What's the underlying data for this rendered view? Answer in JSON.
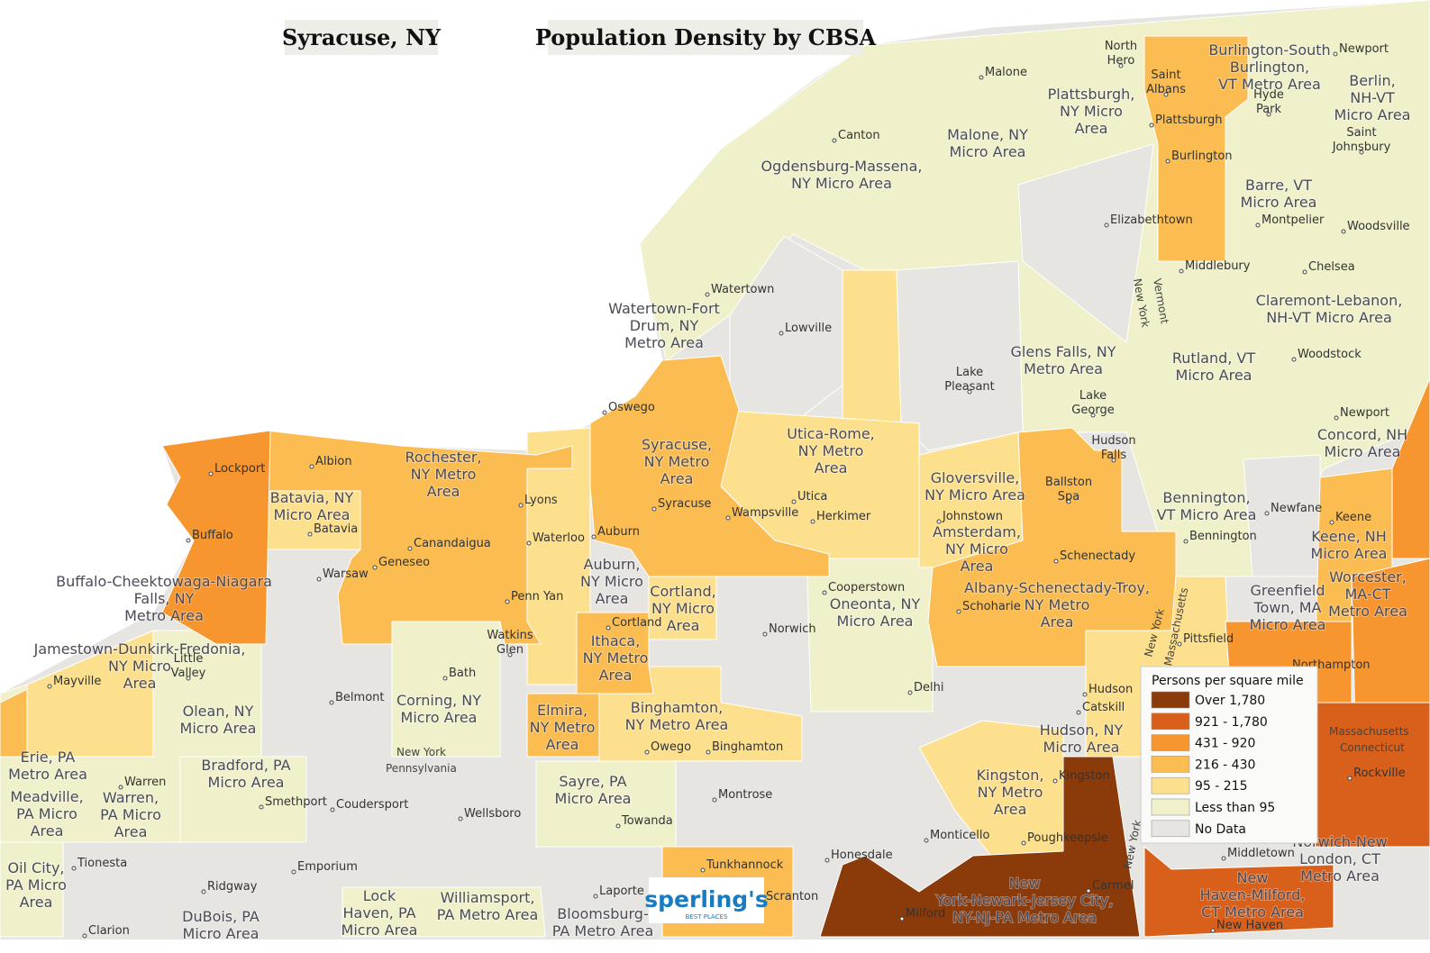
{
  "title": "Syracuse, NY",
  "subtitle": "Population Density by CBSA",
  "legend": {
    "title": "Persons per square mile",
    "items": [
      {
        "label": "Over 1,780",
        "color": "#8b3a0a"
      },
      {
        "label": "921 - 1,780",
        "color": "#d9601a"
      },
      {
        "label": "431 - 920",
        "color": "#f7962e"
      },
      {
        "label": "216 - 430",
        "color": "#fbbd52"
      },
      {
        "label": "95 - 215",
        "color": "#fde08e"
      },
      {
        "label": "Less than 95",
        "color": "#f0f1cb"
      },
      {
        "label": "No Data",
        "color": "#e6e5e1"
      }
    ]
  },
  "logo": {
    "name": "sperling's",
    "tagline": "BEST PLACES"
  },
  "areas": [
    [
      "Watertown-Fort",
      "Drum, NY",
      "Metro Area"
    ],
    [
      "Ogdensburg-Massena,",
      "NY Micro Area"
    ],
    [
      "Malone, NY",
      "Micro Area"
    ],
    [
      "Plattsburgh,",
      "NY Micro",
      "Area"
    ],
    [
      "Burlington-South",
      "Burlington,",
      "VT Metro Area"
    ],
    [
      "Berlin,",
      "NH-VT",
      "Micro Area"
    ],
    [
      "Barre, VT",
      "Micro Area"
    ],
    [
      "Claremont-Lebanon,",
      "NH-VT Micro Area"
    ],
    [
      "Glens Falls, NY",
      "Metro Area"
    ],
    [
      "Rutland, VT",
      "Micro Area"
    ],
    [
      "Concord, NH",
      "Micro Area"
    ],
    [
      "Utica-Rome,",
      "NY Metro",
      "Area"
    ],
    [
      "Syracuse,",
      "NY Metro",
      "Area"
    ],
    [
      "Rochester,",
      "NY Metro",
      "Area"
    ],
    [
      "Batavia, NY",
      "Micro Area"
    ],
    [
      "Gloversville,",
      "NY Micro Area"
    ],
    [
      "Amsterdam,",
      "NY Micro",
      "Area"
    ],
    [
      "Bennington,",
      "VT Micro Area"
    ],
    [
      "Keene, NH",
      "Micro Area"
    ],
    [
      "Worcester,",
      "MA-CT",
      "Metro Area"
    ],
    [
      "Greenfield",
      "Town, MA",
      "Micro Area"
    ],
    [
      "Albany-Schenectady-Troy,",
      "NY Metro",
      "Area"
    ],
    [
      "Buffalo-Cheektowaga-Niagara",
      "Falls, NY",
      "Metro Area"
    ],
    [
      "Auburn,",
      "NY Micro",
      "Area"
    ],
    [
      "Cortland,",
      "NY Micro",
      "Area"
    ],
    [
      "Oneonta, NY",
      "Micro Area"
    ],
    [
      "Jamestown-Dunkirk-Fredonia,",
      "NY Micro",
      "Area"
    ],
    [
      "Ithaca,",
      "NY Metro",
      "Area"
    ],
    [
      "Olean, NY",
      "Micro Area"
    ],
    [
      "Corning, NY",
      "Micro Area"
    ],
    [
      "Elmira,",
      "NY Metro",
      "Area"
    ],
    [
      "Binghamton,",
      "NY Metro Area"
    ],
    [
      "Erie, PA",
      "Metro Area"
    ],
    [
      "Hudson, NY",
      "Micro Area"
    ],
    [
      "Kingston,",
      "NY Metro",
      "Area"
    ],
    [
      "Bradford, PA",
      "Micro Area"
    ],
    [
      "Meadville,",
      "PA Micro",
      "Area"
    ],
    [
      "Warren,",
      "PA Micro",
      "Area"
    ],
    [
      "Sayre, PA",
      "Micro Area"
    ],
    [
      "Norwich-New",
      "London, CT",
      "Metro Area"
    ],
    [
      "New",
      "Haven-Milford,",
      "CT Metro Area"
    ],
    [
      "New",
      "York-Newark-Jersey City,",
      "NY-NJ-PA Metro Area"
    ],
    [
      "Oil City,",
      "PA Micro",
      "Area"
    ],
    [
      "Lock",
      "Haven, PA",
      "Micro Area"
    ],
    [
      "Williamsport,",
      "PA Metro Area"
    ],
    [
      "DuBois, PA",
      "Micro Area"
    ],
    [
      "Bloomsburg-",
      "PA Metro Area"
    ]
  ],
  "places": [
    [
      "Malone"
    ],
    [
      "North",
      "Hero"
    ],
    [
      "Canton"
    ],
    [
      "Saint",
      "Albans"
    ],
    [
      "Plattsburgh"
    ],
    [
      "Hyde",
      "Park"
    ],
    [
      "Saint",
      "Johnsbury"
    ],
    [
      "Newport"
    ],
    [
      "Burlington"
    ],
    [
      "Montpelier"
    ],
    [
      "Elizabethtown"
    ],
    [
      "Woodsville"
    ],
    [
      "Middlebury"
    ],
    [
      "Chelsea"
    ],
    [
      "Watertown"
    ],
    [
      "Lowville"
    ],
    [
      "Woodstock"
    ],
    [
      "Lake",
      "Pleasant"
    ],
    [
      "Lake",
      "George"
    ],
    [
      "Newport"
    ],
    [
      "Hudson",
      "Falls"
    ],
    [
      "Oswego"
    ],
    [
      "Albion"
    ],
    [
      "Lockport"
    ],
    [
      "Ballston",
      "Spa"
    ],
    [
      "Lyons"
    ],
    [
      "Syracuse"
    ],
    [
      "Wampsville"
    ],
    [
      "Newfane"
    ],
    [
      "Johnstown"
    ],
    [
      "Keene"
    ],
    [
      "Herkimer"
    ],
    [
      "Utica"
    ],
    [
      "Auburn"
    ],
    [
      "Buffalo"
    ],
    [
      "Waterloo"
    ],
    [
      "Bennington"
    ],
    [
      "Canandaigua"
    ],
    [
      "Schenectady"
    ],
    [
      "Geneseo"
    ],
    [
      "Warsaw"
    ],
    [
      "Batavia"
    ],
    [
      "Cooperstown"
    ],
    [
      "Penn Yan"
    ],
    [
      "Schoharie"
    ],
    [
      "Cortland"
    ],
    [
      "Norwich"
    ],
    [
      "Pittsfield"
    ],
    [
      "Watkins",
      "Glen"
    ],
    [
      "Little",
      "Valley"
    ],
    [
      "Bath"
    ],
    [
      "Mayville"
    ],
    [
      "Northampton"
    ],
    [
      "Delhi"
    ],
    [
      "Hudson"
    ],
    [
      "Belmont"
    ],
    [
      "Catskill"
    ],
    [
      "Owego"
    ],
    [
      "Binghamton"
    ],
    [
      "Kingston"
    ],
    [
      "Warren"
    ],
    [
      "Smethport"
    ],
    [
      "Coudersport"
    ],
    [
      "Montrose"
    ],
    [
      "Wellsboro"
    ],
    [
      "Towanda"
    ],
    [
      "Monticello"
    ],
    [
      "Poughkeepsie"
    ],
    [
      "Honesdale"
    ],
    [
      "Tionesta"
    ],
    [
      "Tunkhannock"
    ],
    [
      "Middletown"
    ],
    [
      "Emporium"
    ],
    [
      "Carmel"
    ],
    [
      "Ridgway"
    ],
    [
      "Laporte"
    ],
    [
      "Scranton"
    ],
    [
      "Milford"
    ],
    [
      "Clarion"
    ],
    [
      "New Haven"
    ],
    [
      "Rockville"
    ]
  ],
  "state_labels": [
    "New York",
    "Pennsylvania",
    "New York",
    "Vermont",
    "New York",
    "Massachusetts",
    "New York",
    "Massachusetts",
    "Connecticut"
  ]
}
